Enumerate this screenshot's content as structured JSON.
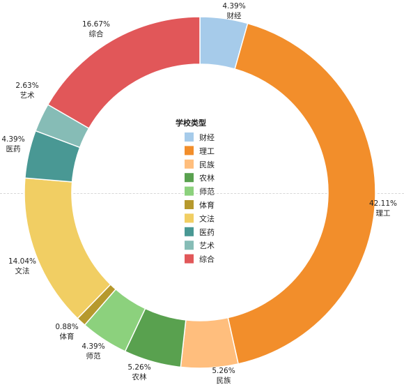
{
  "chart_data": {
    "type": "pie",
    "variant": "donut",
    "legend_title": "学校类型",
    "legend_position": "center",
    "slices": [
      {
        "name": "财经",
        "value": 4.39,
        "label": "4.39%",
        "color": "#a6cbea"
      },
      {
        "name": "理工",
        "value": 42.11,
        "label": "42.11%",
        "color": "#f28e2b"
      },
      {
        "name": "民族",
        "value": 5.26,
        "label": "5.26%",
        "color": "#ffbe7d"
      },
      {
        "name": "农林",
        "value": 5.26,
        "label": "5.26%",
        "color": "#59a14f"
      },
      {
        "name": "师范",
        "value": 4.39,
        "label": "4.39%",
        "color": "#8cd17d"
      },
      {
        "name": "体育",
        "value": 0.88,
        "label": "0.88%",
        "color": "#b6992d"
      },
      {
        "name": "文法",
        "value": 14.04,
        "label": "14.04%",
        "color": "#f1ce63"
      },
      {
        "name": "医药",
        "value": 4.39,
        "label": "4.39%",
        "color": "#499894"
      },
      {
        "name": "艺术",
        "value": 2.63,
        "label": "2.63%",
        "color": "#86bcb6"
      },
      {
        "name": "综合",
        "value": 16.67,
        "label": "16.67%",
        "color": "#e15759"
      }
    ]
  }
}
